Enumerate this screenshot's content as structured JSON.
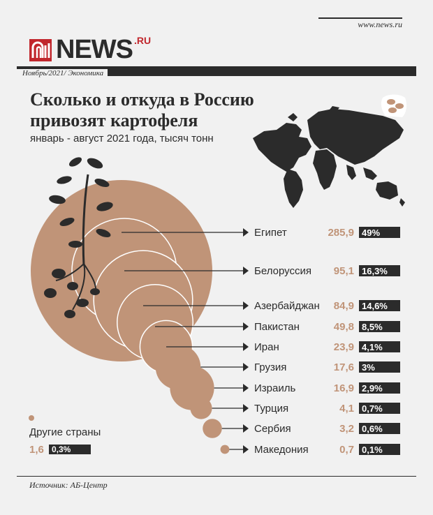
{
  "header": {
    "site": "www.news.ru",
    "logo_text": "NEWS",
    "logo_suffix": ".RU",
    "breadcrumb": "Ноябрь/2021/ Экономика"
  },
  "title": "Сколько и откуда в Россию привозят картофеля",
  "subtitle": "январь - август 2021 года, тысяч тонн",
  "source": "Источник: АБ-Центр",
  "colors": {
    "circle": "#c09478",
    "dark": "#2b2b2b",
    "background": "#f1f1f1",
    "logo_red": "#c1272d"
  },
  "icons": [
    "world-map",
    "potato-plant",
    "potato-bag-icon"
  ],
  "chart_data": {
    "type": "bubble",
    "title": "Сколько и откуда в Россию привозят картофеля",
    "subtitle": "январь - август 2021 года, тысяч тонн",
    "unit": "тысяч тонн",
    "categories": [
      "Египет",
      "Белоруссия",
      "Азербайджан",
      "Пакистан",
      "Иран",
      "Грузия",
      "Израиль",
      "Турция",
      "Сербия",
      "Македония"
    ],
    "values": [
      285.9,
      95.1,
      84.9,
      49.8,
      23.9,
      17.6,
      16.9,
      4.1,
      3.2,
      0.7
    ],
    "value_labels": [
      "285,9",
      "95,1",
      "84,9",
      "49,8",
      "23,9",
      "17,6",
      "16,9",
      "4,1",
      "3,2",
      "0,7"
    ],
    "shares": [
      "49%",
      "16,3%",
      "14,6%",
      "8,5%",
      "4,1%",
      "3%",
      "2,9%",
      "0,7%",
      "0,6%",
      "0,1%"
    ],
    "other": {
      "label": "Другие страны",
      "value": 1.6,
      "value_label": "1,6",
      "share": "0,3%"
    }
  }
}
